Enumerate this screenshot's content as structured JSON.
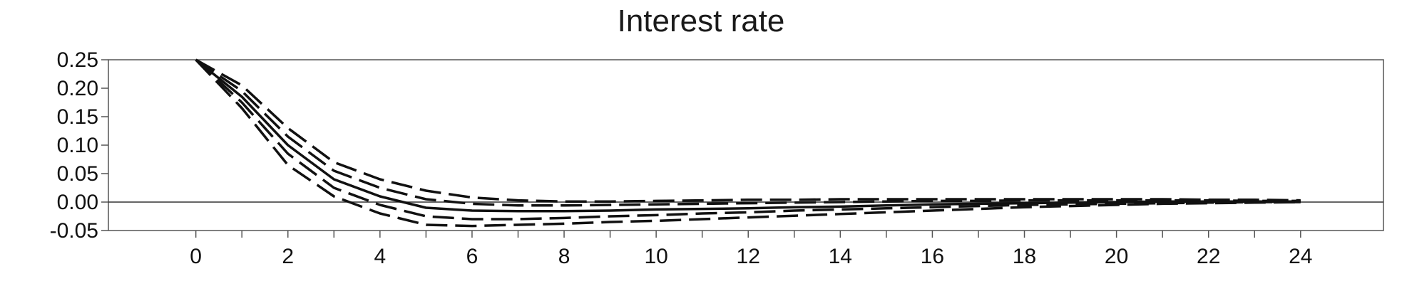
{
  "chart_data": {
    "type": "line",
    "title": "Interest rate",
    "xlabel": "",
    "ylabel": "",
    "x": [
      0,
      1,
      2,
      3,
      4,
      5,
      6,
      7,
      8,
      9,
      10,
      11,
      12,
      13,
      14,
      15,
      16,
      17,
      18,
      19,
      20,
      21,
      22,
      23,
      24
    ],
    "xlim": [
      -1.9,
      25.8
    ],
    "ylim": [
      -0.05,
      0.25
    ],
    "x_ticks": [
      0,
      2,
      4,
      6,
      8,
      10,
      12,
      14,
      16,
      18,
      20,
      22,
      24
    ],
    "x_tick_labels": [
      "0",
      "2",
      "4",
      "6",
      "8",
      "10",
      "12",
      "14",
      "16",
      "18",
      "20",
      "22",
      "24"
    ],
    "y_ticks": [
      0.25,
      0.2,
      0.15,
      0.1,
      0.05,
      0.0,
      -0.05
    ],
    "y_tick_labels": [
      "0.25",
      "0.20",
      "0.15",
      "0.10",
      "0.05",
      "0.00",
      "-0.05"
    ],
    "zero_line": true,
    "grid": false,
    "series": [
      {
        "style": "solid",
        "values": [
          0.25,
          0.185,
          0.1,
          0.04,
          0.01,
          -0.01,
          -0.015,
          -0.016,
          -0.016,
          -0.015,
          -0.013,
          -0.012,
          -0.011,
          -0.009,
          -0.008,
          -0.006,
          -0.004,
          -0.003,
          -0.002,
          -0.001,
          0.0,
          0.001,
          0.001,
          0.001,
          0.001
        ]
      },
      {
        "style": "dashed",
        "values": [
          0.25,
          0.205,
          0.13,
          0.07,
          0.04,
          0.02,
          0.008,
          0.003,
          0.001,
          0.001,
          0.002,
          0.003,
          0.004,
          0.004,
          0.005,
          0.005,
          0.005,
          0.005,
          0.005,
          0.005,
          0.005,
          0.005,
          0.004,
          0.004,
          0.003
        ]
      },
      {
        "style": "dashed",
        "values": [
          0.25,
          0.195,
          0.115,
          0.055,
          0.025,
          0.005,
          -0.003,
          -0.006,
          -0.006,
          -0.005,
          -0.004,
          -0.003,
          -0.002,
          -0.001,
          0.0,
          0.001,
          0.002,
          0.002,
          0.003,
          0.003,
          0.003,
          0.003,
          0.003,
          0.002,
          0.002
        ]
      },
      {
        "style": "dashed",
        "values": [
          0.25,
          0.175,
          0.085,
          0.025,
          -0.005,
          -0.025,
          -0.03,
          -0.03,
          -0.028,
          -0.025,
          -0.023,
          -0.02,
          -0.018,
          -0.015,
          -0.013,
          -0.011,
          -0.009,
          -0.007,
          -0.005,
          -0.004,
          -0.003,
          -0.002,
          -0.001,
          0.0,
          0.0
        ]
      },
      {
        "style": "dashed",
        "values": [
          0.25,
          0.165,
          0.065,
          0.01,
          -0.02,
          -0.04,
          -0.042,
          -0.04,
          -0.038,
          -0.035,
          -0.033,
          -0.03,
          -0.027,
          -0.024,
          -0.021,
          -0.018,
          -0.015,
          -0.012,
          -0.009,
          -0.007,
          -0.005,
          -0.003,
          -0.002,
          -0.001,
          0.0
        ]
      }
    ]
  }
}
